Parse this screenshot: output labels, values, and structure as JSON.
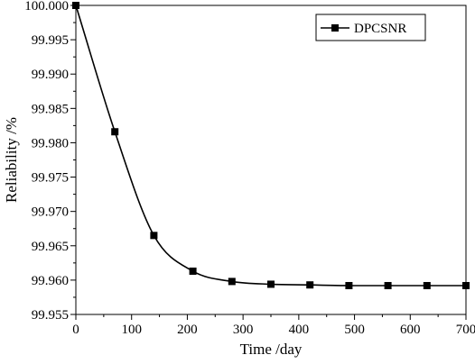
{
  "chart_data": {
    "type": "line",
    "xlabel": "Time /day",
    "ylabel": "Reliability /%",
    "xlim": [
      0,
      700
    ],
    "ylim": [
      99.955,
      100.0
    ],
    "x_ticks": [
      "0",
      "100",
      "200",
      "300",
      "400",
      "500",
      "600",
      "700"
    ],
    "y_ticks": [
      "99.955",
      "99.960",
      "99.965",
      "99.970",
      "99.975",
      "99.980",
      "99.985",
      "99.990",
      "99.995",
      "100.000"
    ],
    "grid": false,
    "legend_position": "top-right",
    "series": [
      {
        "name": "DPCSNR",
        "marker": "square",
        "color": "#000000",
        "x": [
          0,
          70,
          140,
          210,
          280,
          350,
          420,
          490,
          560,
          630,
          700
        ],
        "y": [
          100.0,
          99.9816,
          99.9665,
          99.9613,
          99.9598,
          99.9594,
          99.9593,
          99.9592,
          99.9592,
          99.9592,
          99.9592
        ]
      }
    ]
  }
}
